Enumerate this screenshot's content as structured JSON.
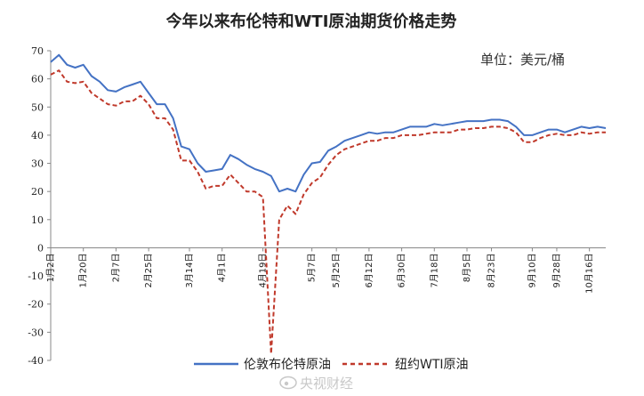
{
  "chart_data": {
    "type": "line",
    "title": "今年以来布伦特和WTI原油期货价格走势",
    "unit_label": "单位：美元/桶",
    "ylim": [
      -40,
      70
    ],
    "yticks": [
      -40,
      -30,
      -20,
      -10,
      0,
      10,
      20,
      30,
      40,
      50,
      60,
      70
    ],
    "grid": false,
    "legend": "bottom",
    "xtick_labels": [
      "1月2日",
      "1月20日",
      "2月7日",
      "2月25日",
      "3月14日",
      "4月1日",
      "4月19日",
      "5月7日",
      "5月25日",
      "6月12日",
      "6月30日",
      "7月18日",
      "8月5日",
      "8月23日",
      "9月10日",
      "9月28日",
      "10月16日"
    ],
    "x": [
      "1月2日",
      "1月6日",
      "1月9日",
      "1月14日",
      "1月20日",
      "1月24日",
      "1月29日",
      "2月3日",
      "2月7日",
      "2月12日",
      "2月17日",
      "2月21日",
      "2月25日",
      "2月28日",
      "3月4日",
      "3月9日",
      "3月11日",
      "3月14日",
      "3月18日",
      "3月23日",
      "3月27日",
      "4月1日",
      "4月6日",
      "4月9日",
      "4月14日",
      "4月16日",
      "4月19日",
      "4月20日",
      "4月21日",
      "4月23日",
      "4月27日",
      "5月1日",
      "5月7日",
      "5月12日",
      "5月18日",
      "5月25日",
      "5月29日",
      "6月3日",
      "6月8日",
      "6月12日",
      "6月16日",
      "6月22日",
      "6月26日",
      "6月30日",
      "7月6日",
      "7月10日",
      "7月14日",
      "7月18日",
      "7月23日",
      "7月28日",
      "8月3日",
      "8月5日",
      "8月11日",
      "8月17日",
      "8月23日",
      "8月27日",
      "9月1日",
      "9月4日",
      "9月8日",
      "9月10日",
      "9月16日",
      "9月22日",
      "9月28日",
      "10月2日",
      "10月8日",
      "10月12日",
      "10月16日",
      "10月20日",
      "10月23日"
    ],
    "series": [
      {
        "name": "伦敦布伦特原油",
        "color": "#4472c4",
        "style": "solid",
        "values": [
          66,
          68.5,
          65,
          64,
          65,
          61,
          59,
          56,
          55.5,
          57,
          58,
          59,
          55,
          51,
          51,
          46,
          36,
          35,
          30,
          27,
          27.5,
          28,
          33,
          31.5,
          29.5,
          28,
          27,
          25.5,
          20,
          21,
          20,
          26,
          30,
          30.5,
          34.5,
          36,
          38,
          39,
          40,
          41,
          40.5,
          41,
          41,
          42,
          43,
          43,
          43,
          44,
          43.5,
          44,
          44.5,
          45,
          45,
          45,
          45.5,
          45.5,
          45,
          43,
          40,
          40,
          41,
          42,
          42,
          41,
          42,
          43,
          42.5,
          43,
          42.5
        ]
      },
      {
        "name": "纽约WTI原油",
        "color": "#c0392b",
        "style": "dashed",
        "values": [
          61.5,
          63,
          59,
          58.5,
          59,
          55,
          53,
          51,
          50.5,
          52,
          52,
          54,
          51,
          46,
          46,
          42,
          31,
          31,
          27,
          21,
          22,
          22,
          26,
          23,
          20,
          20,
          18,
          -37.6,
          10,
          15,
          12,
          19,
          23,
          25,
          29.5,
          33,
          35,
          36,
          37,
          38,
          38,
          39,
          39,
          40,
          40,
          40,
          40.5,
          41,
          41,
          41,
          42,
          42,
          42.5,
          42.5,
          43,
          43,
          42.5,
          41,
          37.5,
          37.5,
          39,
          40,
          40.5,
          40,
          40,
          41,
          40.5,
          41,
          41
        ]
      }
    ]
  },
  "watermark": "央视财经",
  "watermark_icon": "weibo-icon"
}
